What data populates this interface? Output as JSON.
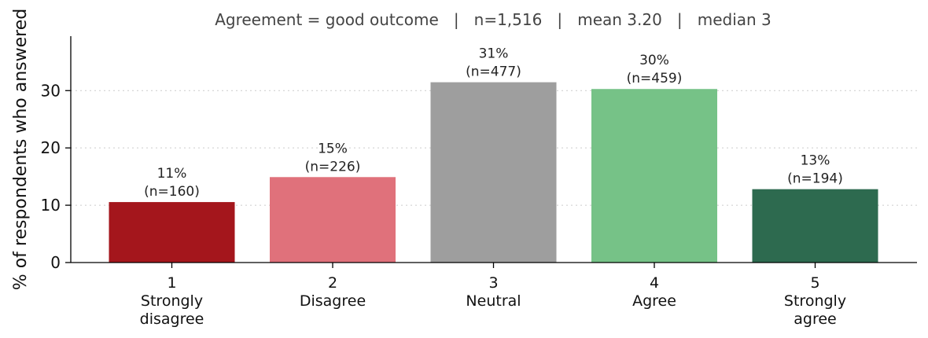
{
  "chart_data": {
    "type": "bar",
    "title": "Agreement = good outcome   |   n=1,516   |   mean 3.20   |   median 3",
    "xlabel": "",
    "ylabel": "% of respondents who answered",
    "ylim": [
      0,
      39.5
    ],
    "yticks": [
      0,
      10,
      20,
      30
    ],
    "grid": "horizontal dotted",
    "legend": "none",
    "categories": [
      {
        "code": "1",
        "lines": [
          "Strongly",
          "disagree"
        ]
      },
      {
        "code": "2",
        "lines": [
          "Disagree"
        ]
      },
      {
        "code": "3",
        "lines": [
          "Neutral"
        ]
      },
      {
        "code": "4",
        "lines": [
          "Agree"
        ]
      },
      {
        "code": "5",
        "lines": [
          "Strongly",
          "agree"
        ]
      }
    ],
    "values": [
      10.55,
      14.91,
      31.46,
      30.28,
      12.8
    ],
    "labels": [
      {
        "pct": "11%",
        "n": "(n=160)"
      },
      {
        "pct": "15%",
        "n": "(n=226)"
      },
      {
        "pct": "31%",
        "n": "(n=477)"
      },
      {
        "pct": "30%",
        "n": "(n=459)"
      },
      {
        "pct": "13%",
        "n": "(n=194)"
      }
    ],
    "colors": [
      "#a4161c",
      "#e0717b",
      "#9e9e9e",
      "#76c287",
      "#2d6a4f"
    ]
  }
}
